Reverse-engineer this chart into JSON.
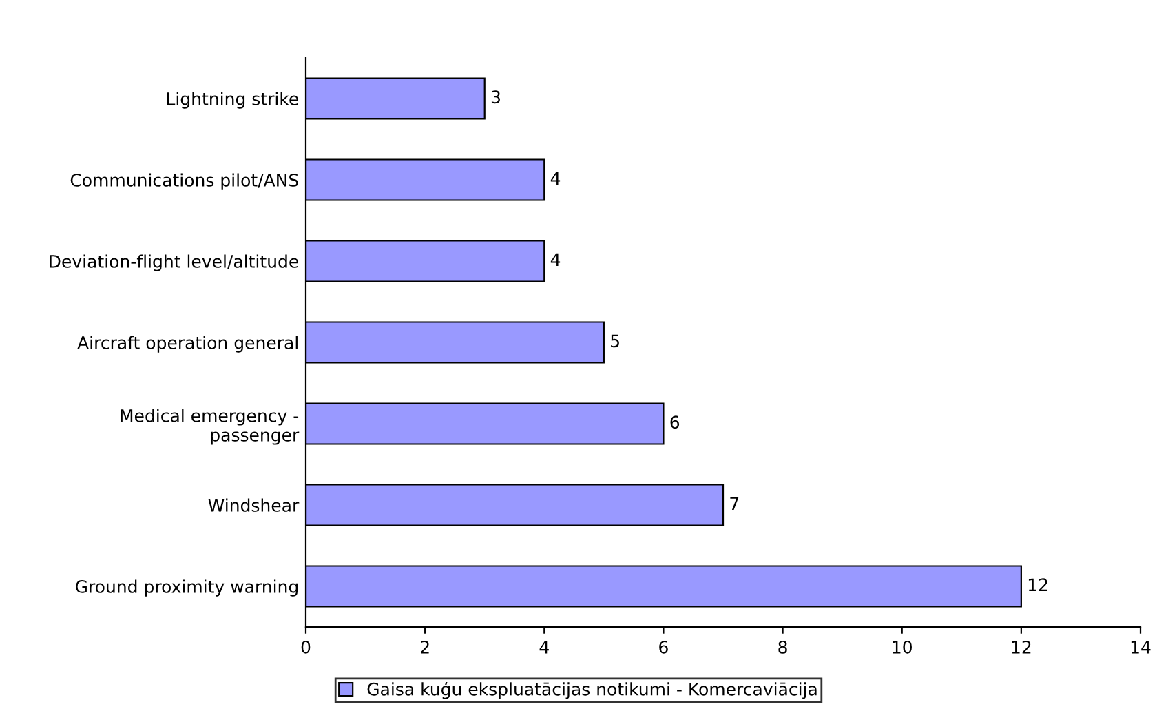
{
  "chart_data": {
    "type": "bar",
    "orientation": "horizontal",
    "categories": [
      "Lightning strike",
      "Communications pilot/ANS",
      "Deviation-flight level/altitude",
      "Aircraft operation general",
      "Medical emergency -\npassenger",
      "Windshear",
      "Ground proximity warning"
    ],
    "series": [
      {
        "name": "Gaisa kuģu ekspluatācijas notikumi - Komercaviācija",
        "color": "#9999ff",
        "values": [
          3,
          4,
          4,
          5,
          6,
          7,
          12
        ]
      }
    ],
    "xlim": [
      0,
      14
    ],
    "xticks": [
      0,
      2,
      4,
      6,
      8,
      10,
      12,
      14
    ],
    "grid": false,
    "legend": "bottom",
    "data_labels": true
  }
}
